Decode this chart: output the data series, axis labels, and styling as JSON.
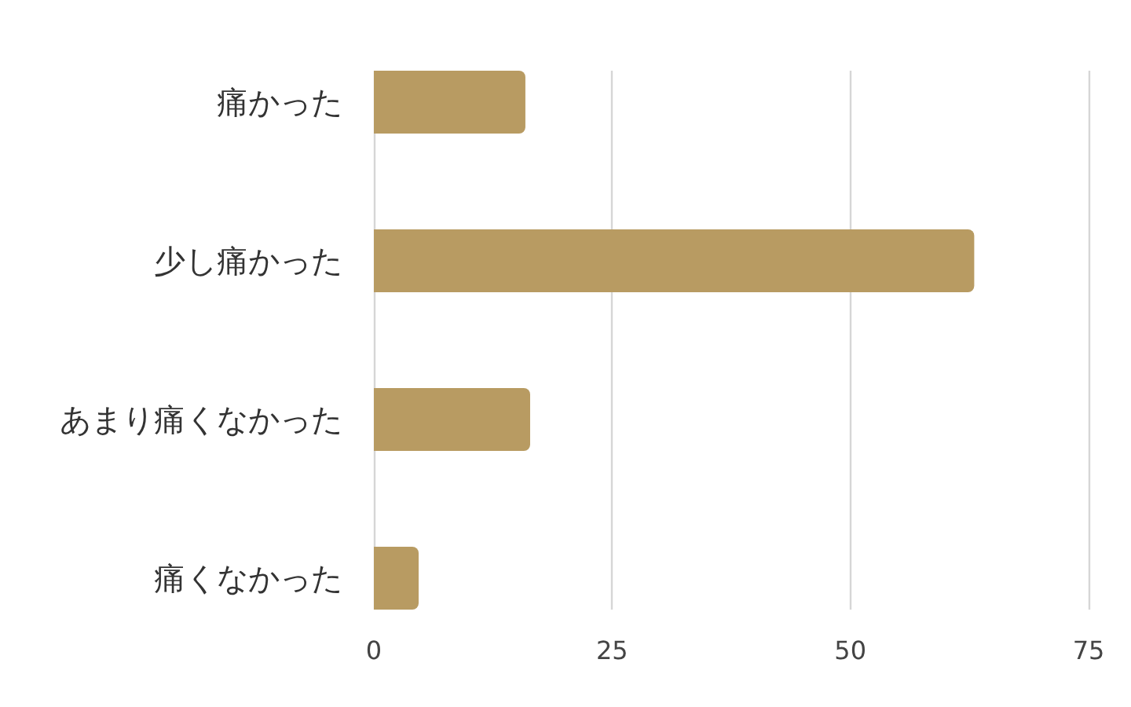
{
  "chart_data": {
    "type": "bar",
    "orientation": "horizontal",
    "categories": [
      "痛かった",
      "少し痛かった",
      "あまり痛くなかった",
      "痛くなかった"
    ],
    "values": [
      15.9,
      63,
      16.4,
      4.7
    ],
    "color": "#b89b62",
    "xlim": [
      0,
      75
    ],
    "xticks": [
      0,
      25,
      50,
      75
    ],
    "grid": "x"
  }
}
